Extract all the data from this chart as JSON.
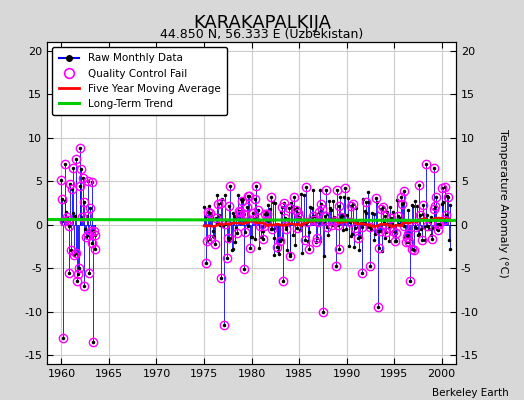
{
  "title": "KARAKAPALKIJA",
  "subtitle": "44.850 N, 56.333 E (Uzbekistan)",
  "ylabel": "Temperature Anomaly (°C)",
  "footer": "Berkeley Earth",
  "xlim": [
    1958.5,
    2001.5
  ],
  "ylim": [
    -16,
    21
  ],
  "yticks": [
    -15,
    -10,
    -5,
    0,
    5,
    10,
    15,
    20
  ],
  "xticks": [
    1960,
    1965,
    1970,
    1975,
    1980,
    1985,
    1990,
    1995,
    2000
  ],
  "figure_bg": "#d8d8d8",
  "plot_bg": "#ffffff",
  "raw_color": "#0000ff",
  "qc_color": "#ff00ff",
  "moving_avg_color": "#ff0000",
  "trend_color": "#00cc00",
  "grid_color": "#cccccc",
  "seed": 7
}
